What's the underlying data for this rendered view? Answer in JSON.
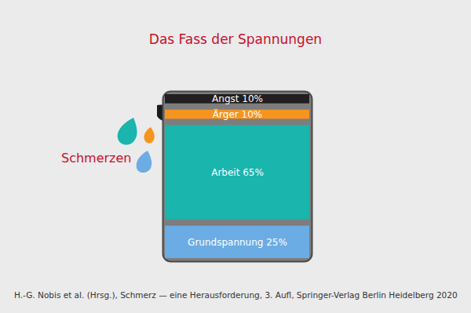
{
  "chart_data": {
    "type": "bar",
    "stacked": true,
    "title": "Das Fass der Spannungen",
    "categories": [
      "Angst",
      "Ärger",
      "Arbeit",
      "Grundspannung"
    ],
    "values": [
      10,
      10,
      65,
      25
    ],
    "value_labels": [
      "Angst 10%",
      "Ärger 10%",
      "Arbeit 65%",
      "Grundspannung 25%"
    ],
    "colors": [
      "#231f20",
      "#f7941d",
      "#1ab5ad",
      "#6cace4"
    ],
    "data_labels": true,
    "tick_labels": false,
    "annotation": "Schmerzen",
    "source": "H.-G. Nobis et al. (Hrsg.), Schmerz — eine Herausforderung, 3. Aufl, Springer-Verlag Berlin Heidelberg 2020"
  }
}
